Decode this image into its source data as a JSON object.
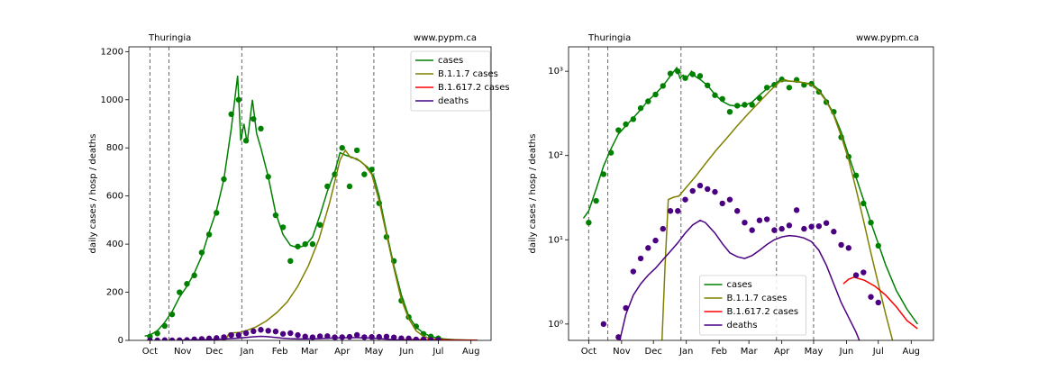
{
  "chart_data": [
    {
      "type": "line",
      "location": "Thuringia",
      "source": "www.pypm.ca",
      "y_label": "daily cases / hosp / deaths",
      "log_y": false,
      "grid": false,
      "legend": "upper right",
      "xlim": [
        -20,
        323
      ],
      "ylim": [
        0,
        1220
      ],
      "xticks": [
        {
          "value": 0,
          "label": "Oct"
        },
        {
          "value": 31,
          "label": "Nov"
        },
        {
          "value": 61,
          "label": "Dec"
        },
        {
          "value": 92,
          "label": "Jan"
        },
        {
          "value": 123,
          "label": "Feb"
        },
        {
          "value": 151,
          "label": "Mar"
        },
        {
          "value": 182,
          "label": "Apr"
        },
        {
          "value": 212,
          "label": "May"
        },
        {
          "value": 243,
          "label": "Jun"
        },
        {
          "value": 273,
          "label": "Jul"
        },
        {
          "value": 304,
          "label": "Aug"
        }
      ],
      "yticks": [
        0,
        200,
        400,
        600,
        800,
        1000,
        1200
      ],
      "vlines": [
        0,
        18,
        87,
        177,
        212
      ],
      "series": [
        {
          "name": "cases",
          "color": "green",
          "x": [
            -5,
            0,
            7,
            14,
            21,
            28,
            35,
            42,
            49,
            56,
            63,
            70,
            77,
            83,
            86,
            89,
            92,
            97,
            101,
            105,
            112,
            119,
            126,
            133,
            140,
            147,
            154,
            161,
            168,
            175,
            180,
            185,
            192,
            199,
            206,
            212,
            217,
            224,
            231,
            238,
            245,
            252,
            259,
            266,
            273,
            280,
            290,
            300,
            310
          ],
          "values": [
            18,
            22,
            40,
            75,
            120,
            180,
            225,
            280,
            350,
            450,
            540,
            670,
            880,
            1100,
            830,
            900,
            820,
            1000,
            860,
            800,
            680,
            530,
            440,
            395,
            385,
            395,
            430,
            520,
            620,
            700,
            780,
            770,
            760,
            745,
            720,
            680,
            600,
            450,
            310,
            190,
            100,
            55,
            30,
            16,
            9,
            5,
            2.5,
            1.5,
            1.0
          ],
          "points_x": [
            0,
            7,
            14,
            21,
            28,
            35,
            42,
            49,
            56,
            63,
            70,
            77,
            84,
            91,
            98,
            105,
            112,
            119,
            126,
            133,
            140,
            147,
            154,
            161,
            168,
            175,
            182,
            189,
            196,
            203,
            210,
            217,
            224,
            231,
            238,
            245,
            252,
            259,
            266,
            273
          ],
          "points": [
            16,
            29,
            60,
            108,
            200,
            235,
            270,
            365,
            440,
            530,
            670,
            940,
            1000,
            830,
            920,
            880,
            680,
            520,
            470,
            330,
            390,
            400,
            400,
            480,
            640,
            690,
            800,
            640,
            790,
            690,
            710,
            570,
            430,
            330,
            165,
            97,
            58,
            27,
            16,
            8.5
          ]
        },
        {
          "name": "B.1.1.7 cases",
          "color": "olive",
          "x": [
            68,
            72,
            75,
            80,
            85,
            92,
            100,
            110,
            120,
            130,
            140,
            150,
            160,
            170,
            180,
            185,
            190,
            196,
            203,
            210,
            217,
            224,
            231,
            238,
            245,
            252,
            259,
            266,
            273,
            280,
            287,
            295
          ],
          "values": [
            0.3,
            5,
            30,
            32,
            33,
            42,
            55,
            80,
            115,
            160,
            225,
            310,
            420,
            570,
            750,
            790,
            760,
            755,
            730,
            690,
            580,
            440,
            300,
            170,
            90,
            40,
            17,
            7,
            3,
            1.3,
            0.6,
            0.3
          ]
        },
        {
          "name": "B.1.617.2 cases",
          "color": "red",
          "x": [
            240,
            245,
            250,
            260,
            270,
            280,
            290,
            300,
            310
          ],
          "values": [
            3.0,
            3.4,
            3.6,
            3.3,
            2.8,
            2.2,
            1.6,
            1.1,
            0.88
          ]
        },
        {
          "name": "deaths",
          "color": "indigo",
          "x": [
            28,
            30,
            35,
            42,
            49,
            56,
            63,
            70,
            77,
            84,
            91,
            98,
            105,
            110,
            119,
            126,
            133,
            140,
            147,
            154,
            161,
            168,
            175,
            182,
            189,
            196,
            203,
            210,
            217,
            224,
            231,
            238,
            245,
            252,
            256
          ],
          "values": [
            0.5,
            0.7,
            1.3,
            2.2,
            3.0,
            3.8,
            4.6,
            5.8,
            7.3,
            9.2,
            12,
            15,
            17,
            16,
            12,
            9,
            7,
            6.3,
            6.0,
            6.5,
            7.5,
            8.8,
            10,
            10.8,
            11.2,
            11,
            10.5,
            9.5,
            7.5,
            5,
            3,
            1.8,
            1.2,
            0.8,
            0.6
          ],
          "points_x": [
            0,
            7,
            14,
            21,
            28,
            35,
            42,
            49,
            56,
            63,
            70,
            77,
            84,
            91,
            98,
            105,
            112,
            119,
            126,
            133,
            140,
            147,
            154,
            161,
            168,
            175,
            182,
            189,
            196,
            203,
            210,
            217,
            224,
            231,
            238,
            245,
            252,
            259,
            266,
            273
          ],
          "points": [
            0,
            0,
            1.0,
            0,
            0.7,
            1.55,
            4.2,
            6.0,
            8.0,
            9.8,
            13.5,
            22,
            22,
            30,
            38,
            44,
            40,
            37,
            27,
            30,
            22,
            16,
            13,
            17,
            17.5,
            13,
            13.5,
            14.8,
            22.5,
            13.5,
            14.3,
            14.5,
            15.8,
            12.5,
            8.7,
            8,
            3.8,
            4.1,
            2.1,
            1.8
          ]
        }
      ]
    },
    {
      "type": "line",
      "location": "Thuringia",
      "source": "www.pypm.ca",
      "y_label": "daily cases / hosp / deaths",
      "log_y": true,
      "grid": false,
      "legend": "lower center",
      "xlim": [
        -19,
        325
      ],
      "ylim": [
        0.64,
        1950
      ],
      "xticks": [
        {
          "value": 0,
          "label": "Oct"
        },
        {
          "value": 31,
          "label": "Nov"
        },
        {
          "value": 61,
          "label": "Dec"
        },
        {
          "value": 92,
          "label": "Jan"
        },
        {
          "value": 123,
          "label": "Feb"
        },
        {
          "value": 151,
          "label": "Mar"
        },
        {
          "value": 182,
          "label": "Apr"
        },
        {
          "value": 212,
          "label": "May"
        },
        {
          "value": 243,
          "label": "Jun"
        },
        {
          "value": 273,
          "label": "Jul"
        },
        {
          "value": 304,
          "label": "Aug"
        }
      ],
      "yticks": [
        {
          "value": 1,
          "label": "10⁰"
        },
        {
          "value": 10,
          "label": "10¹"
        },
        {
          "value": 100,
          "label": "10²"
        },
        {
          "value": 1000,
          "label": "10³"
        }
      ],
      "vlines": [
        0,
        18,
        87,
        177,
        212
      ],
      "series": [
        {
          "name": "cases",
          "color": "green",
          "x": [
            -5,
            0,
            7,
            14,
            21,
            28,
            35,
            42,
            49,
            56,
            63,
            70,
            77,
            83,
            86,
            89,
            92,
            97,
            101,
            105,
            112,
            119,
            126,
            133,
            140,
            147,
            154,
            161,
            168,
            175,
            180,
            185,
            192,
            199,
            206,
            212,
            217,
            224,
            231,
            238,
            245,
            252,
            259,
            266,
            273,
            280,
            290,
            300,
            310
          ],
          "values": [
            18,
            22,
            40,
            75,
            120,
            180,
            225,
            280,
            350,
            450,
            540,
            670,
            880,
            1100,
            830,
            900,
            820,
            1000,
            860,
            800,
            680,
            530,
            440,
            395,
            385,
            395,
            430,
            520,
            620,
            700,
            780,
            770,
            760,
            745,
            720,
            680,
            600,
            450,
            310,
            190,
            100,
            55,
            30,
            16,
            9,
            5,
            2.5,
            1.5,
            1.0
          ],
          "points_x": [
            0,
            7,
            14,
            21,
            28,
            35,
            42,
            49,
            56,
            63,
            70,
            77,
            84,
            91,
            98,
            105,
            112,
            119,
            126,
            133,
            140,
            147,
            154,
            161,
            168,
            175,
            182,
            189,
            196,
            203,
            210,
            217,
            224,
            231,
            238,
            245,
            252,
            259,
            266,
            273
          ],
          "points": [
            16,
            29,
            60,
            108,
            200,
            235,
            270,
            365,
            440,
            530,
            670,
            940,
            1000,
            830,
            920,
            880,
            680,
            520,
            470,
            330,
            390,
            400,
            400,
            480,
            640,
            690,
            800,
            640,
            790,
            690,
            710,
            570,
            430,
            330,
            165,
            97,
            58,
            27,
            16,
            8.5
          ]
        },
        {
          "name": "B.1.1.7 cases",
          "color": "olive",
          "x": [
            68,
            72,
            75,
            80,
            85,
            92,
            100,
            110,
            120,
            130,
            140,
            150,
            160,
            170,
            180,
            185,
            190,
            196,
            203,
            210,
            217,
            224,
            231,
            238,
            245,
            252,
            259,
            266,
            273,
            280,
            287,
            295
          ],
          "values": [
            0.3,
            5,
            30,
            32,
            33,
            42,
            55,
            80,
            115,
            160,
            225,
            310,
            420,
            570,
            750,
            790,
            760,
            755,
            730,
            690,
            580,
            440,
            300,
            170,
            90,
            40,
            17,
            7,
            3,
            1.3,
            0.6,
            0.3
          ]
        },
        {
          "name": "B.1.617.2 cases",
          "color": "red",
          "x": [
            240,
            245,
            250,
            260,
            270,
            280,
            290,
            300,
            310
          ],
          "values": [
            3.0,
            3.4,
            3.6,
            3.3,
            2.8,
            2.2,
            1.6,
            1.1,
            0.88
          ]
        },
        {
          "name": "deaths",
          "color": "indigo",
          "x": [
            28,
            30,
            35,
            42,
            49,
            56,
            63,
            70,
            77,
            84,
            91,
            98,
            105,
            110,
            119,
            126,
            133,
            140,
            147,
            154,
            161,
            168,
            175,
            182,
            189,
            196,
            203,
            210,
            217,
            224,
            231,
            238,
            245,
            252,
            256
          ],
          "values": [
            0.5,
            0.7,
            1.3,
            2.2,
            3.0,
            3.8,
            4.6,
            5.8,
            7.3,
            9.2,
            12,
            15,
            17,
            16,
            12,
            9,
            7,
            6.3,
            6.0,
            6.5,
            7.5,
            8.8,
            10,
            10.8,
            11.2,
            11,
            10.5,
            9.5,
            7.5,
            5,
            3,
            1.8,
            1.2,
            0.8,
            0.6
          ],
          "points_x": [
            0,
            7,
            14,
            21,
            28,
            35,
            42,
            49,
            56,
            63,
            70,
            77,
            84,
            91,
            98,
            105,
            112,
            119,
            126,
            133,
            140,
            147,
            154,
            161,
            168,
            175,
            182,
            189,
            196,
            203,
            210,
            217,
            224,
            231,
            238,
            245,
            252,
            259,
            266,
            273
          ],
          "points": [
            null,
            null,
            1.0,
            null,
            0.7,
            1.55,
            4.2,
            6.0,
            8.0,
            9.8,
            13.5,
            22,
            22,
            30,
            38,
            44,
            40,
            37,
            27,
            30,
            22,
            16,
            13,
            17,
            17.5,
            13,
            13.5,
            14.8,
            22.5,
            13.5,
            14.3,
            14.5,
            15.8,
            12.5,
            8.7,
            8,
            3.8,
            4.1,
            2.1,
            1.8
          ]
        }
      ]
    }
  ]
}
